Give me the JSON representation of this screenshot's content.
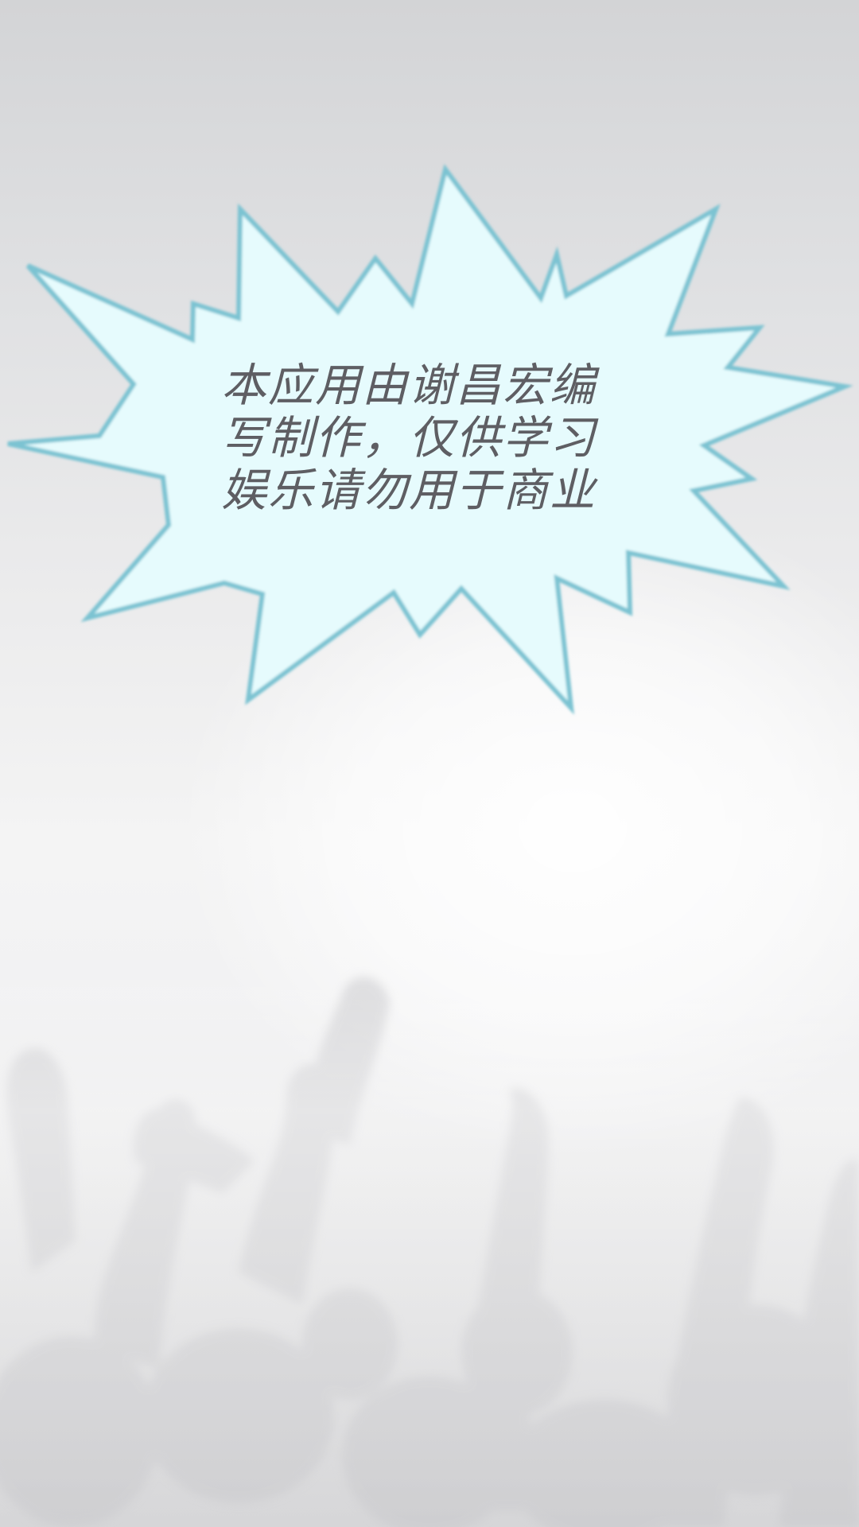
{
  "screen": {
    "background_color": "#e9e9ea",
    "decoration": "crowd-cheering-silhouette"
  },
  "splash": {
    "shape": "starburst-speech-bubble",
    "fill_color": "#e6fbfd",
    "outline_color": "#7cc3d2",
    "text_color": "#5e5e63",
    "lines": [
      "本应用由谢昌宏编",
      "写制作，仅供学习",
      "娱乐请勿用于商业"
    ]
  }
}
